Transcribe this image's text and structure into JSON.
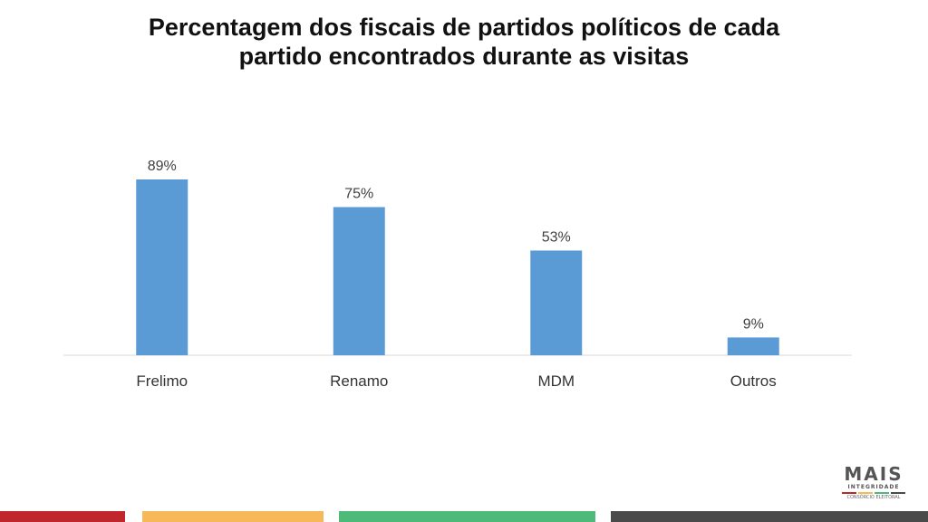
{
  "title_line1": "Percentagem dos fiscais de partidos políticos de cada",
  "title_line2": "partido encontrados durante as visitas",
  "chart_data": {
    "type": "bar",
    "categories": [
      "Frelimo",
      "Renamo",
      "MDM",
      "Outros"
    ],
    "values": [
      89,
      75,
      53,
      9
    ],
    "data_labels": [
      "89%",
      "75%",
      "53%",
      "9%"
    ],
    "ylim": [
      0,
      100
    ],
    "grid": false,
    "legend": "none",
    "bar_color": "#5B9BD5",
    "axis_color": "#D9D9D9"
  },
  "logo": {
    "name": "MAIS",
    "subtitle": "INTEGRIDADE",
    "tagline": "CONSÓRCIO ELEITORAL",
    "stripe_colors": [
      "#C0272D",
      "#F7B85A",
      "#4DBA7A",
      "#4A4A4A"
    ]
  },
  "footer_colors": [
    "#C0272D",
    "#F7B85A",
    "#4DBA7A",
    "#4A4A4A"
  ]
}
